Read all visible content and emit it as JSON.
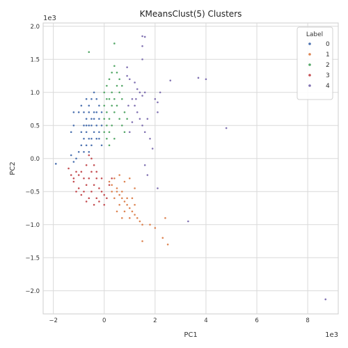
{
  "chart_data": {
    "type": "scatter",
    "title": "KMeansClust(5) Clusters",
    "xlabel": "PC1",
    "ylabel": "PC2",
    "x_offset_label": "1e3",
    "y_offset_label": "1e3",
    "xlim": [
      -2.4,
      9.2
    ],
    "ylim": [
      -2.35,
      2.05
    ],
    "x_ticks": [
      -2,
      0,
      2,
      4,
      6,
      8
    ],
    "x_tick_labels": [
      "−2",
      "0",
      "2",
      "4",
      "6",
      "8"
    ],
    "y_ticks": [
      -2.0,
      -1.5,
      -1.0,
      -0.5,
      0.0,
      0.5,
      1.0,
      1.5,
      2.0
    ],
    "y_tick_labels": [
      "−2.0",
      "−1.5",
      "−1.0",
      "−0.5",
      "0.0",
      "0.5",
      "1.0",
      "1.5",
      "2.0"
    ],
    "grid": true,
    "legend": {
      "title": "Label",
      "placement": "top-right",
      "entries": [
        "0",
        "1",
        "2",
        "3",
        "4"
      ]
    },
    "series": [
      {
        "name": "0",
        "color": "#4c72b0",
        "points": [
          [
            -0.6,
            0.5
          ],
          [
            -0.7,
            0.4
          ],
          [
            -0.5,
            0.6
          ],
          [
            -0.8,
            0.3
          ],
          [
            -0.4,
            0.7
          ],
          [
            -0.9,
            0.2
          ],
          [
            -0.3,
            0.5
          ],
          [
            -0.6,
            0.8
          ],
          [
            -0.5,
            0.3
          ],
          [
            -0.7,
            0.6
          ],
          [
            -1.0,
            0.1
          ],
          [
            -1.1,
            0.0
          ],
          [
            -0.2,
            0.6
          ],
          [
            -0.3,
            0.3
          ],
          [
            -0.4,
            0.4
          ],
          [
            -0.5,
            0.2
          ],
          [
            -0.6,
            0.1
          ],
          [
            -0.8,
            0.5
          ],
          [
            -0.9,
            0.4
          ],
          [
            -0.2,
            0.8
          ],
          [
            -0.1,
            0.7
          ],
          [
            -0.3,
            0.9
          ],
          [
            -0.4,
            1.0
          ],
          [
            -0.5,
            0.9
          ],
          [
            -1.2,
            -0.05
          ],
          [
            -1.3,
            0.05
          ],
          [
            -0.7,
            0.9
          ],
          [
            -0.2,
            0.4
          ],
          [
            -0.1,
            0.5
          ],
          [
            -1.2,
            0.5
          ],
          [
            -1.3,
            0.4
          ],
          [
            -1.0,
            0.7
          ],
          [
            -0.6,
            0.7
          ],
          [
            -0.5,
            0.5
          ],
          [
            -0.4,
            0.6
          ],
          [
            -0.3,
            0.7
          ],
          [
            -0.2,
            0.3
          ],
          [
            -0.1,
            0.2
          ],
          [
            -0.7,
            0.2
          ],
          [
            -0.8,
            0.1
          ],
          [
            -1.9,
            -0.08
          ],
          [
            -1.2,
            0.7
          ],
          [
            -0.9,
            0.8
          ],
          [
            -0.6,
            0.3
          ],
          [
            -0.7,
            0.5
          ],
          [
            -0.8,
            0.7
          ]
        ]
      },
      {
        "name": "1",
        "color": "#dd8452",
        "points": [
          [
            0.3,
            -0.4
          ],
          [
            0.5,
            -0.5
          ],
          [
            0.7,
            -0.6
          ],
          [
            0.9,
            -0.7
          ],
          [
            1.1,
            -0.8
          ],
          [
            0.4,
            -0.3
          ],
          [
            0.6,
            -0.55
          ],
          [
            0.8,
            -0.65
          ],
          [
            1.0,
            -0.75
          ],
          [
            1.2,
            -0.85
          ],
          [
            0.2,
            -0.35
          ],
          [
            0.5,
            -0.45
          ],
          [
            0.7,
            -0.5
          ],
          [
            0.9,
            -0.6
          ],
          [
            1.3,
            -0.9
          ],
          [
            1.4,
            -0.95
          ],
          [
            0.6,
            -0.7
          ],
          [
            0.8,
            -0.8
          ],
          [
            1.0,
            -0.9
          ],
          [
            1.5,
            -1.0
          ],
          [
            0.4,
            -0.6
          ],
          [
            0.3,
            -0.5
          ],
          [
            1.2,
            -0.7
          ],
          [
            1.1,
            -0.6
          ],
          [
            0.5,
            -0.8
          ],
          [
            0.7,
            -0.9
          ],
          [
            2.5,
            -1.3
          ],
          [
            1.5,
            -1.25
          ],
          [
            2.3,
            -1.2
          ],
          [
            2.0,
            -1.05
          ],
          [
            2.4,
            -0.9
          ],
          [
            1.8,
            -1.0
          ],
          [
            1.0,
            -0.3
          ],
          [
            1.2,
            -0.45
          ],
          [
            0.8,
            -0.35
          ],
          [
            0.6,
            -0.25
          ]
        ]
      },
      {
        "name": "2",
        "color": "#55a868",
        "points": [
          [
            0.1,
            0.7
          ],
          [
            0.2,
            0.6
          ],
          [
            0.3,
            0.8
          ],
          [
            0.4,
            0.9
          ],
          [
            0.0,
            0.6
          ],
          [
            0.1,
            0.5
          ],
          [
            0.2,
            0.9
          ],
          [
            0.3,
            1.0
          ],
          [
            0.4,
            0.7
          ],
          [
            0.5,
            0.8
          ],
          [
            0.0,
            0.8
          ],
          [
            0.1,
            0.9
          ],
          [
            0.2,
            0.4
          ],
          [
            0.3,
            0.5
          ],
          [
            0.4,
            0.3
          ],
          [
            0.5,
            1.1
          ],
          [
            0.6,
            1.0
          ],
          [
            0.7,
            0.9
          ],
          [
            0.8,
            0.7
          ],
          [
            0.0,
            1.0
          ],
          [
            0.1,
            1.1
          ],
          [
            0.2,
            1.2
          ],
          [
            0.3,
            1.3
          ],
          [
            0.4,
            1.4
          ],
          [
            0.5,
            1.3
          ],
          [
            0.6,
            0.6
          ],
          [
            0.7,
            0.5
          ],
          [
            0.8,
            0.4
          ],
          [
            0.9,
            0.6
          ],
          [
            0.0,
            0.4
          ],
          [
            0.1,
            0.3
          ],
          [
            0.2,
            0.2
          ],
          [
            -0.6,
            1.61
          ],
          [
            0.4,
            1.74
          ],
          [
            0.6,
            1.2
          ],
          [
            0.7,
            1.1
          ]
        ]
      },
      {
        "name": "3",
        "color": "#c44e52",
        "points": [
          [
            -0.7,
            -0.4
          ],
          [
            -0.5,
            -0.5
          ],
          [
            -0.3,
            -0.6
          ],
          [
            -0.1,
            -0.5
          ],
          [
            -0.8,
            -0.3
          ],
          [
            -0.9,
            -0.2
          ],
          [
            -0.6,
            -0.3
          ],
          [
            -0.4,
            -0.4
          ],
          [
            -0.2,
            -0.45
          ],
          [
            0.0,
            -0.55
          ],
          [
            0.1,
            -0.6
          ],
          [
            -1.0,
            -0.25
          ],
          [
            -1.1,
            -0.2
          ],
          [
            -1.2,
            -0.3
          ],
          [
            -1.3,
            -0.25
          ],
          [
            -1.4,
            -0.15
          ],
          [
            -0.7,
            -0.1
          ],
          [
            -0.5,
            -0.2
          ],
          [
            -0.3,
            -0.3
          ],
          [
            -0.6,
            -0.6
          ],
          [
            -0.4,
            -0.7
          ],
          [
            -0.2,
            -0.65
          ],
          [
            0.0,
            -0.7
          ],
          [
            -0.8,
            -0.5
          ],
          [
            -1.0,
            -0.45
          ],
          [
            -1.2,
            -0.35
          ],
          [
            -0.5,
            0.0
          ],
          [
            -0.4,
            -0.1
          ],
          [
            -0.6,
            0.05
          ],
          [
            -0.3,
            -0.2
          ],
          [
            0.2,
            -0.4
          ],
          [
            0.3,
            -0.3
          ],
          [
            -1.1,
            -0.5
          ],
          [
            -0.9,
            -0.55
          ],
          [
            -0.7,
            -0.65
          ],
          [
            -0.1,
            -0.3
          ]
        ]
      },
      {
        "name": "4",
        "color": "#8172b2",
        "points": [
          [
            1.5,
            1.85
          ],
          [
            1.6,
            1.84
          ],
          [
            1.5,
            1.7
          ],
          [
            1.5,
            1.5
          ],
          [
            0.9,
            1.38
          ],
          [
            0.9,
            1.25
          ],
          [
            1.0,
            1.2
          ],
          [
            1.2,
            1.15
          ],
          [
            1.3,
            1.05
          ],
          [
            1.4,
            1.0
          ],
          [
            1.5,
            0.95
          ],
          [
            1.6,
            1.0
          ],
          [
            1.1,
            0.9
          ],
          [
            1.2,
            0.8
          ],
          [
            1.3,
            0.7
          ],
          [
            1.4,
            0.6
          ],
          [
            1.5,
            0.5
          ],
          [
            1.6,
            0.4
          ],
          [
            1.7,
            0.6
          ],
          [
            2.0,
            0.9
          ],
          [
            2.2,
            1.0
          ],
          [
            2.1,
            0.85
          ],
          [
            2.1,
            0.7
          ],
          [
            1.8,
            0.3
          ],
          [
            1.9,
            0.15
          ],
          [
            1.0,
            0.4
          ],
          [
            1.1,
            0.55
          ],
          [
            0.95,
            0.8
          ],
          [
            1.25,
            0.9
          ],
          [
            2.6,
            1.18
          ],
          [
            3.7,
            1.22
          ],
          [
            4.0,
            1.2
          ],
          [
            4.8,
            0.46
          ],
          [
            1.6,
            -0.1
          ],
          [
            1.7,
            -0.25
          ],
          [
            2.1,
            -0.45
          ],
          [
            3.3,
            -0.95
          ],
          [
            8.7,
            -2.13
          ]
        ]
      }
    ]
  }
}
